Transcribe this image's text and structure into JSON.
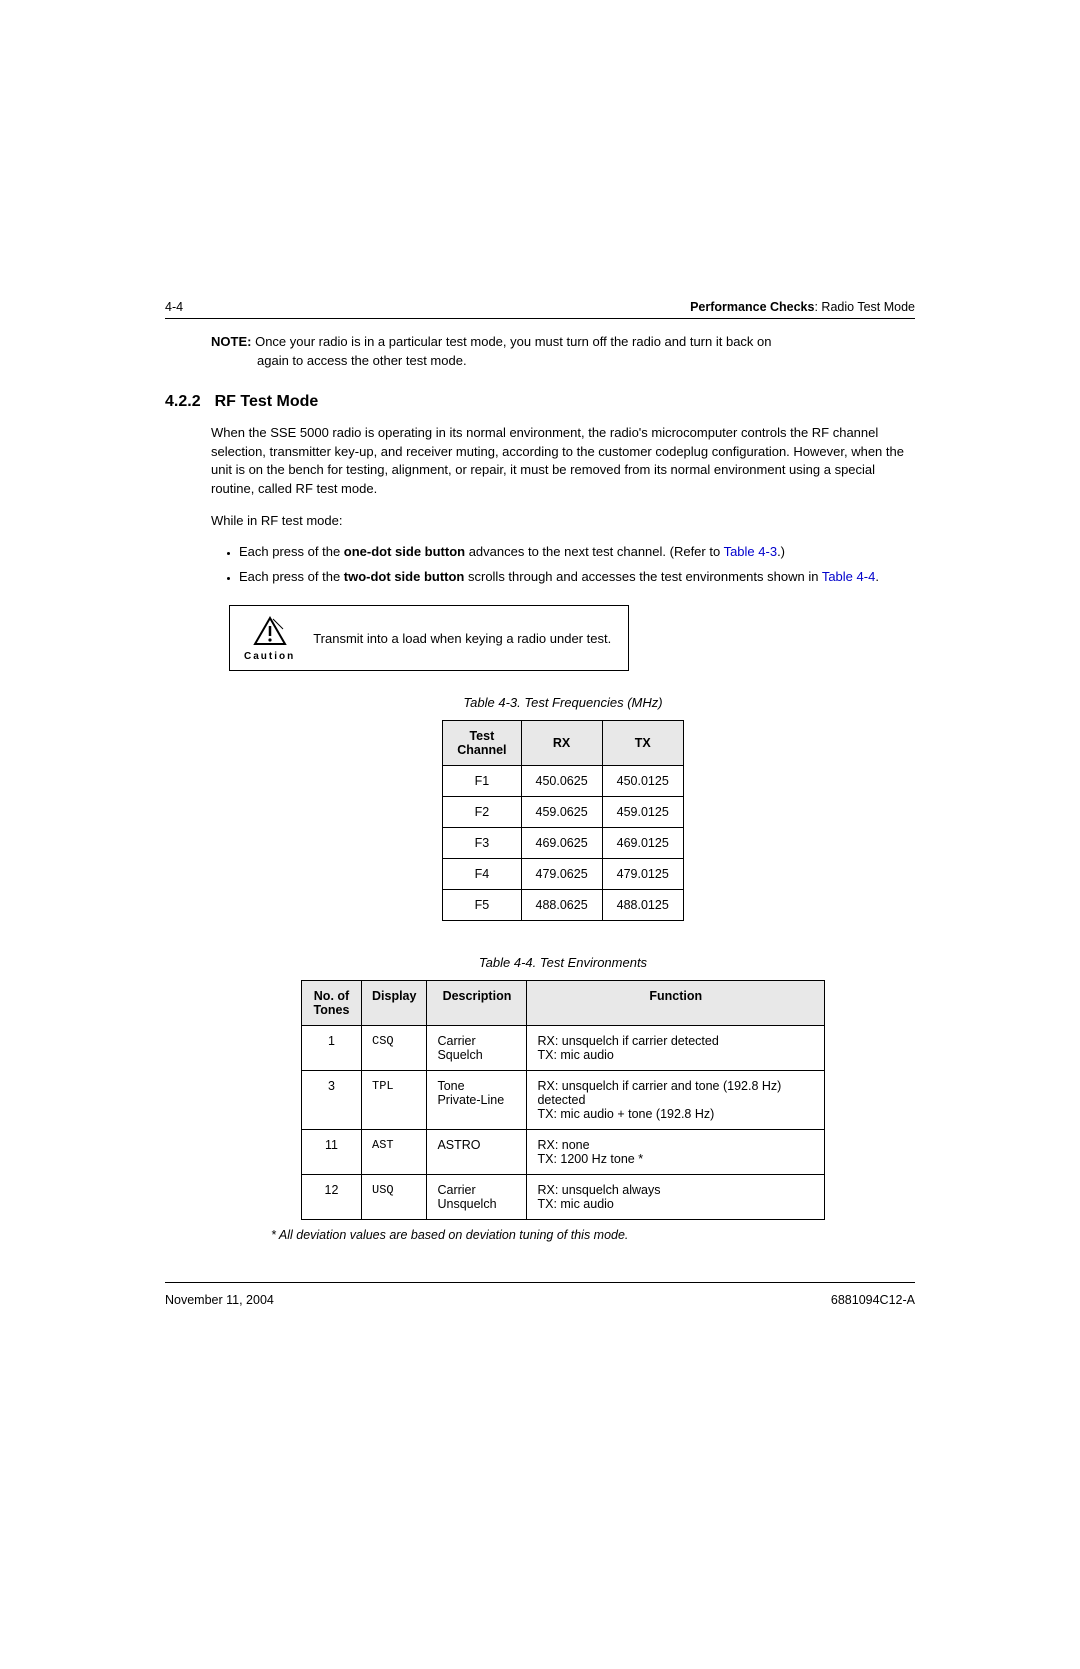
{
  "header": {
    "page_num": "4-4",
    "section_bold": "Performance Checks",
    "section_rest": ": Radio Test Mode"
  },
  "note": {
    "label": "NOTE:",
    "text": "Once your radio is in a particular test mode, you must turn off the radio and turn it back on again to access the other test mode."
  },
  "section": {
    "number": "4.2.2",
    "title": "RF Test Mode"
  },
  "para1": "When the SSE 5000 radio is operating in its normal environment, the radio's microcomputer controls the RF channel selection, transmitter key-up, and receiver muting, according to the customer codeplug configuration. However, when the unit is on the bench for testing, alignment, or repair, it must be removed from its normal environment using a special routine, called RF test mode.",
  "para2": "While in RF test mode:",
  "bullets": {
    "b1_pre": "Each press of the ",
    "b1_bold": "one-dot side button",
    "b1_post": " advances to the next test channel. (Refer to ",
    "b1_link": "Table 4-3",
    "b1_end": ".)",
    "b2_pre": "Each press of the ",
    "b2_bold": "two-dot side button",
    "b2_post": " scrolls through and accesses the test environments shown in ",
    "b2_link": "Table 4-4",
    "b2_end": "."
  },
  "caution": {
    "label": "Caution",
    "text": "Transmit into a load when keying a radio under test.",
    "icon_fill": "#000000"
  },
  "table43": {
    "caption": "Table 4-3.  Test Frequencies (MHz)",
    "columns": [
      "Test Channel",
      "RX",
      "TX"
    ],
    "rows": [
      [
        "F1",
        "450.0625",
        "450.0125"
      ],
      [
        "F2",
        "459.0625",
        "459.0125"
      ],
      [
        "F3",
        "469.0625",
        "469.0125"
      ],
      [
        "F4",
        "479.0625",
        "479.0125"
      ],
      [
        "F5",
        "488.0625",
        "488.0125"
      ]
    ]
  },
  "table44": {
    "caption": "Table 4-4.  Test Environments",
    "columns": [
      "No. of Tones",
      "Display",
      "Description",
      "Function"
    ],
    "rows": [
      {
        "tones": "1",
        "display": "CSQ",
        "desc": "Carrier Squelch",
        "func": "RX: unsquelch if carrier detected\nTX: mic audio"
      },
      {
        "tones": "3",
        "display": "TPL",
        "desc": "Tone Private-Line",
        "func": "RX: unsquelch if carrier and tone (192.8 Hz) detected\nTX: mic audio + tone (192.8 Hz)"
      },
      {
        "tones": "11",
        "display": "AST",
        "desc": "ASTRO",
        "func": "RX: none\nTX: 1200 Hz tone *"
      },
      {
        "tones": "12",
        "display": "USQ",
        "desc": "Carrier Unsquelch",
        "func": "RX: unsquelch always\nTX: mic audio"
      }
    ],
    "col_widths": [
      "60px",
      "60px",
      "100px",
      "auto"
    ]
  },
  "footnote": "*   All deviation values are based on deviation tuning of this mode.",
  "footer": {
    "date": "November 11, 2004",
    "docnum": "6881094C12-A"
  }
}
